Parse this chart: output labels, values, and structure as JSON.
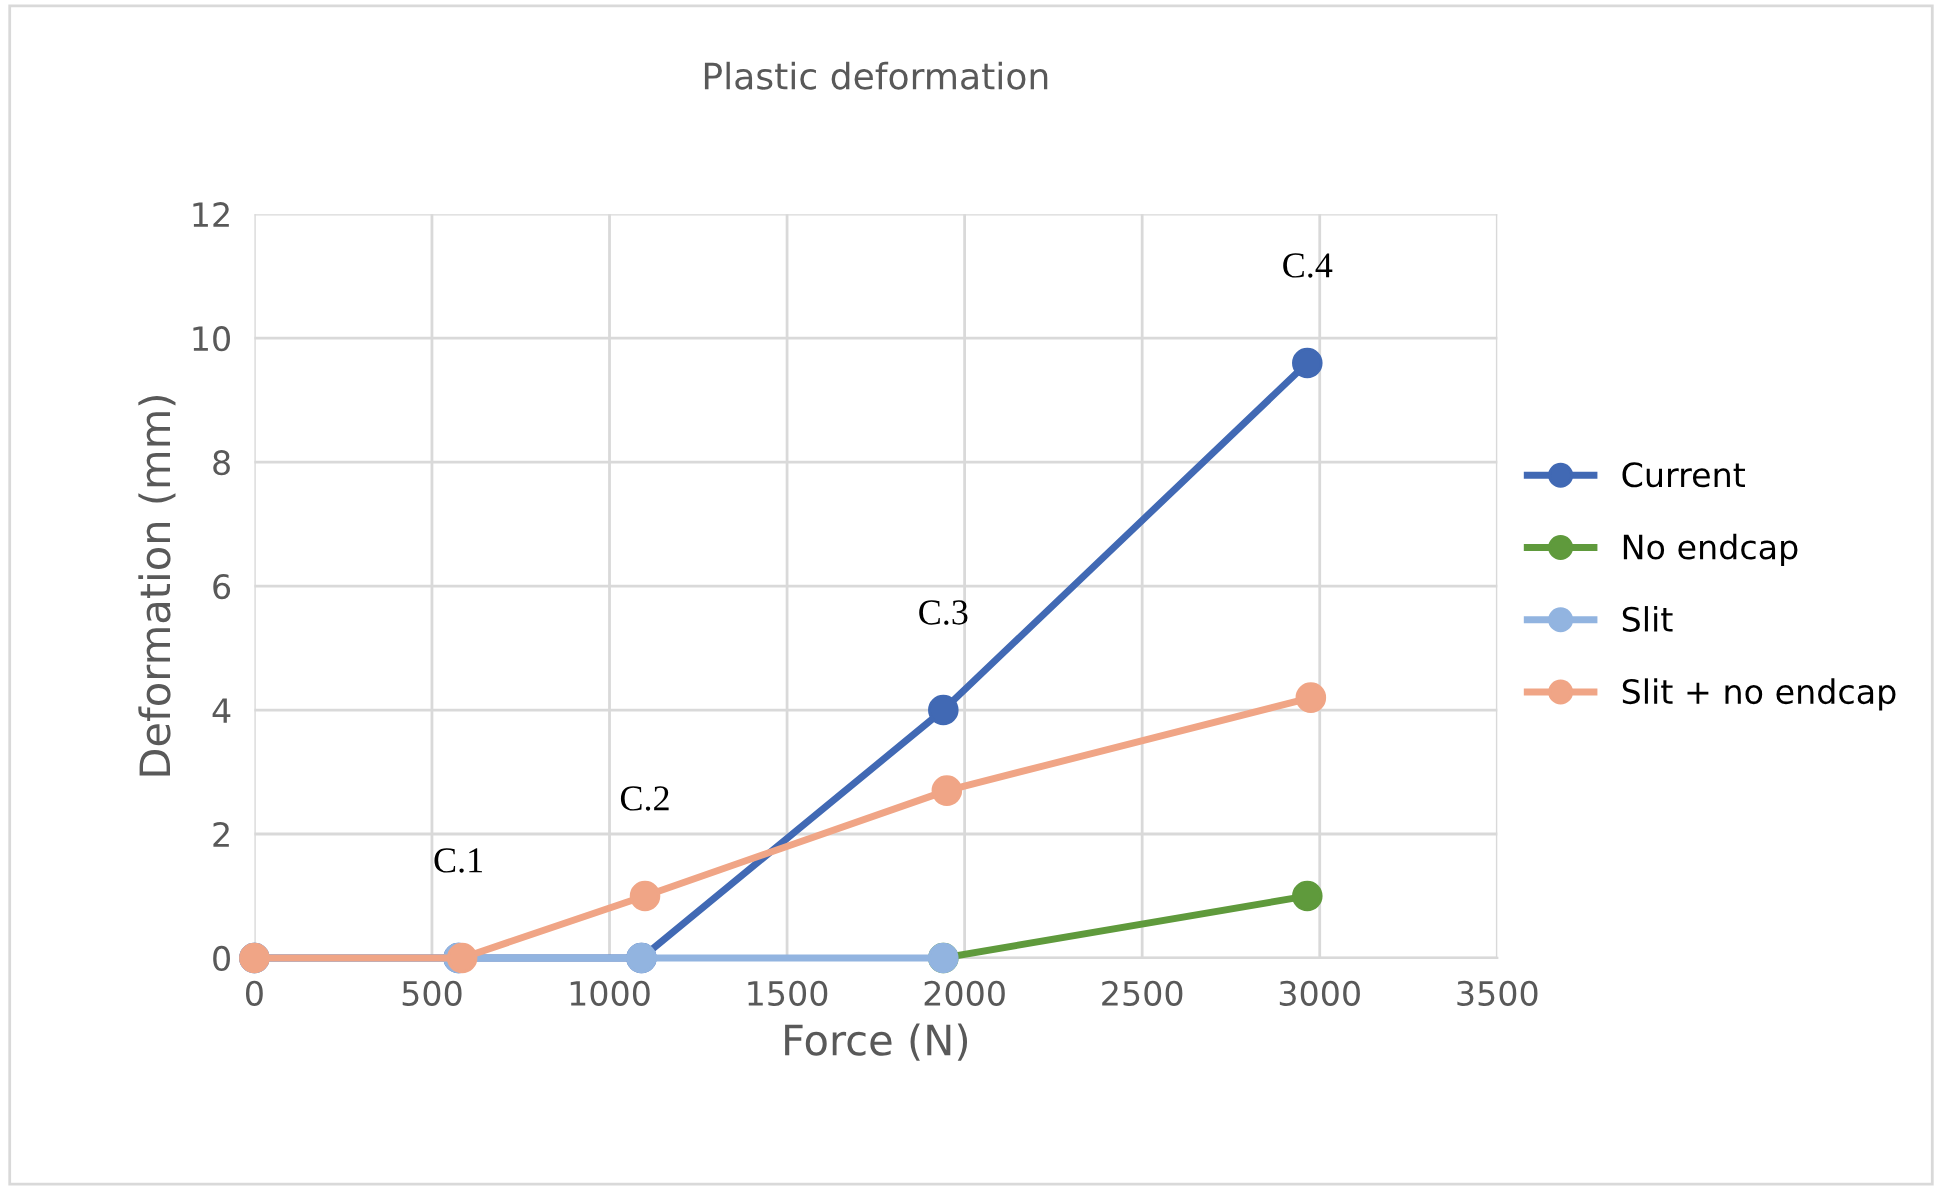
{
  "chart_data": {
    "type": "line",
    "title": "Plastic deformation",
    "xlabel": "Force (N)",
    "ylabel": "Deformation (mm)",
    "xlim": [
      0,
      3500
    ],
    "xticks": [
      0,
      500,
      1000,
      1500,
      2000,
      2500,
      3000,
      3500
    ],
    "ylim": [
      0,
      12
    ],
    "yticks": [
      0,
      2,
      4,
      6,
      8,
      10,
      12
    ],
    "grid": true,
    "legend": "right",
    "marker": "circle",
    "line_style": "solid",
    "series": [
      {
        "name": "Current",
        "color": "#4169b4",
        "x": [
          0,
          575,
          1090,
          1940,
          2965
        ],
        "values": [
          0,
          0,
          0,
          4.0,
          9.6
        ]
      },
      {
        "name": "No endcap",
        "color": "#5f9a3c",
        "x": [
          1940,
          2965
        ],
        "values": [
          0,
          1.0
        ]
      },
      {
        "name": "Slit",
        "color": "#92b4e0",
        "x": [
          0,
          575,
          1090,
          1940
        ],
        "values": [
          0,
          0,
          0,
          0
        ]
      },
      {
        "name": "Slit + no endcap",
        "color": "#f0a586",
        "x": [
          0,
          585,
          1100,
          1950,
          2975
        ],
        "values": [
          0,
          0,
          1.0,
          2.7,
          4.2
        ]
      }
    ],
    "annotations": [
      {
        "text": "C.1",
        "x": 575,
        "y": 0
      },
      {
        "text": "C.2",
        "x": 1100,
        "y": 1.0
      },
      {
        "text": "C.3",
        "x": 1940,
        "y": 4.0
      },
      {
        "text": "C.4",
        "x": 2965,
        "y": 9.6
      }
    ]
  }
}
